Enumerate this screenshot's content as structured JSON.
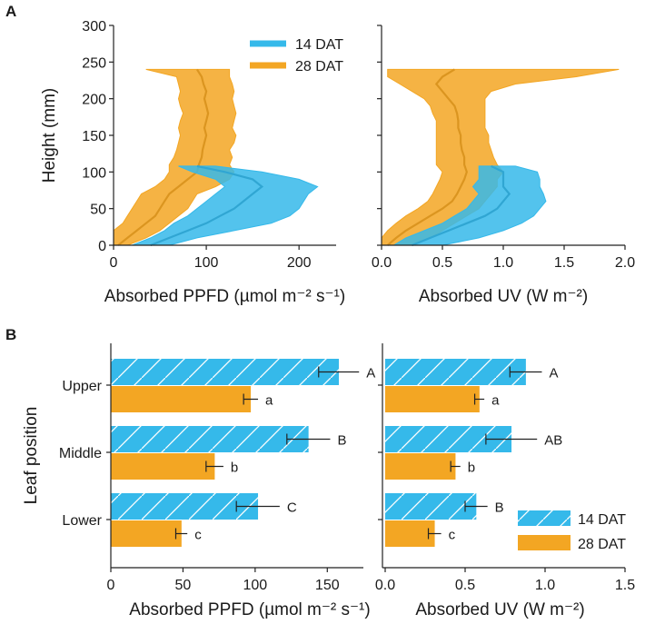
{
  "panel_labels": {
    "a": "A",
    "b": "B"
  },
  "colors": {
    "dat14": "#35b9ea",
    "dat28": "#f3a623",
    "axis": "#222222"
  },
  "chart_data": [
    {
      "id": "A-left",
      "type": "area",
      "panel": "A",
      "xlabel": "Absorbed PPFD (µmol m⁻² s⁻¹)",
      "ylabel": "Height (mm)",
      "xlim": [
        0,
        240
      ],
      "ylim": [
        0,
        300
      ],
      "xticks": [
        0,
        100,
        200
      ],
      "yticks": [
        0,
        50,
        100,
        150,
        200,
        250,
        300
      ],
      "legend": {
        "placement": "top-right",
        "entries": [
          "14 DAT",
          "28 DAT"
        ]
      },
      "series": [
        {
          "name": "28 DAT",
          "height": [
            0,
            10,
            20,
            30,
            40,
            50,
            60,
            70,
            80,
            90,
            100,
            110,
            120,
            130,
            140,
            150,
            160,
            170,
            180,
            190,
            200,
            210,
            220,
            230,
            240
          ],
          "mean": [
            5,
            15,
            25,
            35,
            45,
            50,
            55,
            60,
            70,
            80,
            90,
            92,
            95,
            96,
            98,
            100,
            98,
            100,
            102,
            100,
            98,
            100,
            97,
            95,
            90
          ],
          "lower": [
            0,
            0,
            0,
            10,
            15,
            20,
            25,
            30,
            45,
            55,
            60,
            60,
            65,
            68,
            70,
            72,
            70,
            72,
            75,
            72,
            70,
            72,
            70,
            68,
            35
          ],
          "upper": [
            15,
            35,
            50,
            60,
            70,
            80,
            85,
            90,
            110,
            125,
            130,
            125,
            128,
            125,
            130,
            132,
            128,
            130,
            132,
            130,
            128,
            130,
            128,
            125,
            125
          ]
        },
        {
          "name": "14 DAT",
          "height": [
            0,
            10,
            20,
            30,
            40,
            50,
            60,
            70,
            80,
            90,
            100,
            108
          ],
          "mean": [
            40,
            60,
            80,
            100,
            115,
            130,
            140,
            150,
            160,
            150,
            120,
            90
          ],
          "lower": [
            20,
            40,
            55,
            65,
            80,
            90,
            100,
            110,
            120,
            110,
            85,
            70
          ],
          "upper": [
            60,
            90,
            130,
            170,
            190,
            200,
            205,
            210,
            220,
            200,
            160,
            110
          ]
        }
      ]
    },
    {
      "id": "A-right",
      "type": "area",
      "panel": "A",
      "xlabel": "Absorbed UV (W m⁻²)",
      "ylabel": "",
      "xlim": [
        0,
        2.0
      ],
      "ylim": [
        0,
        300
      ],
      "xticks": [
        "0.0",
        "0.5",
        "1.0",
        "1.5",
        "2.0"
      ],
      "series": [
        {
          "name": "28 DAT",
          "height": [
            0,
            10,
            20,
            30,
            40,
            50,
            60,
            70,
            80,
            90,
            100,
            110,
            120,
            130,
            140,
            150,
            160,
            170,
            180,
            190,
            200,
            210,
            220,
            230,
            240
          ],
          "mean": [
            0.05,
            0.12,
            0.2,
            0.3,
            0.4,
            0.5,
            0.58,
            0.62,
            0.65,
            0.68,
            0.7,
            0.68,
            0.68,
            0.66,
            0.65,
            0.65,
            0.63,
            0.63,
            0.62,
            0.6,
            0.55,
            0.5,
            0.45,
            0.5,
            0.6
          ],
          "lower": [
            0.0,
            0.0,
            0.05,
            0.12,
            0.2,
            0.3,
            0.38,
            0.42,
            0.45,
            0.48,
            0.5,
            0.45,
            0.45,
            0.45,
            0.45,
            0.45,
            0.45,
            0.45,
            0.42,
            0.4,
            0.35,
            0.25,
            0.15,
            0.05,
            0.05
          ],
          "upper": [
            0.25,
            0.4,
            0.5,
            0.6,
            0.7,
            0.8,
            0.85,
            0.9,
            0.95,
            0.95,
            1.0,
            0.95,
            0.92,
            0.9,
            0.88,
            0.88,
            0.85,
            0.85,
            0.85,
            0.85,
            0.85,
            0.9,
            1.1,
            1.6,
            1.95
          ]
        },
        {
          "name": "14 DAT",
          "height": [
            0,
            10,
            20,
            30,
            40,
            50,
            60,
            70,
            80,
            90,
            100,
            108
          ],
          "mean": [
            0.25,
            0.4,
            0.55,
            0.7,
            0.85,
            0.95,
            1.0,
            1.05,
            1.0,
            1.0,
            1.0,
            0.9
          ],
          "lower": [
            0.1,
            0.2,
            0.35,
            0.5,
            0.6,
            0.7,
            0.75,
            0.8,
            0.75,
            0.8,
            0.8,
            0.8
          ],
          "upper": [
            0.5,
            0.8,
            1.0,
            1.15,
            1.25,
            1.3,
            1.35,
            1.33,
            1.3,
            1.3,
            1.28,
            1.1
          ]
        }
      ]
    },
    {
      "id": "B-left",
      "type": "bar",
      "panel": "B",
      "orientation": "horizontal",
      "categories": [
        "Upper",
        "Middle",
        "Lower"
      ],
      "xlabel": "Absorbed PPFD (µmol m⁻² s⁻¹)",
      "ylabel": "Leaf position",
      "xlim": [
        0,
        175
      ],
      "xticks": [
        0,
        50,
        100,
        150
      ],
      "series": [
        {
          "name": "14 DAT",
          "values": [
            158,
            137,
            102
          ],
          "errors": [
            14,
            15,
            15
          ],
          "letters": [
            "A",
            "B",
            "C"
          ]
        },
        {
          "name": "28 DAT",
          "values": [
            97,
            72,
            49
          ],
          "errors": [
            5,
            6,
            4
          ],
          "letters": [
            "a",
            "b",
            "c"
          ]
        }
      ]
    },
    {
      "id": "B-right",
      "type": "bar",
      "panel": "B",
      "orientation": "horizontal",
      "categories": [
        "Upper",
        "Middle",
        "Lower"
      ],
      "xlabel": "Absorbed UV (W m⁻²)",
      "ylabel": "",
      "xlim": [
        0,
        1.5
      ],
      "xticks": [
        "0.0",
        "0.5",
        "1.0",
        "1.5"
      ],
      "legend": {
        "placement": "bottom-right",
        "entries": [
          "14 DAT",
          "28 DAT"
        ]
      },
      "series": [
        {
          "name": "14 DAT",
          "values": [
            0.88,
            0.79,
            0.57
          ],
          "errors": [
            0.1,
            0.16,
            0.07
          ],
          "letters": [
            "A",
            "AB",
            "B"
          ]
        },
        {
          "name": "28 DAT",
          "values": [
            0.59,
            0.44,
            0.31
          ],
          "errors": [
            0.03,
            0.03,
            0.04
          ],
          "letters": [
            "a",
            "b",
            "c"
          ]
        }
      ]
    }
  ]
}
